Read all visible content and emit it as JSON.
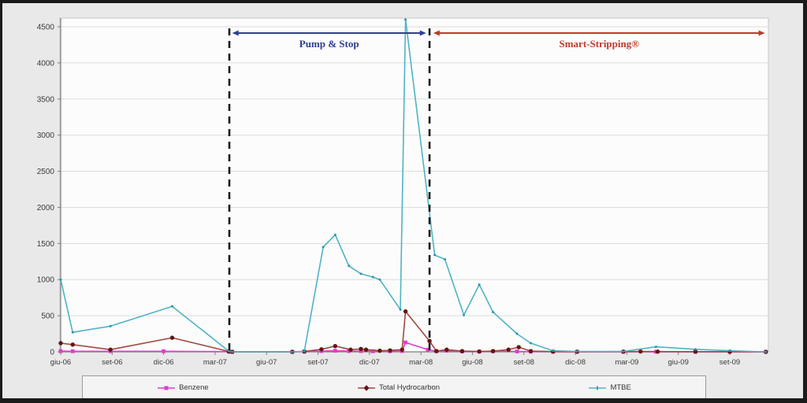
{
  "window": {
    "background": "#e9e9e9",
    "plot_background": "#fcfcfc",
    "frame_color": "#1b1b1b",
    "gridline_color": "#dcdcdc",
    "axis_color": "#7f7f7f",
    "tick_label_color": "#3a3a3a"
  },
  "chart_data": {
    "type": "line",
    "title": "",
    "xlabel": "",
    "ylabel": "",
    "x_tick_labels": [
      "giu-06",
      "set-06",
      "dic-06",
      "mar-07",
      "giu-07",
      "set-07",
      "dic-07",
      "mar-08",
      "giu-08",
      "set-08",
      "dic-08",
      "mar-09",
      "giu-09",
      "set-09"
    ],
    "x_months_per_tick": 3,
    "x_range_months": [
      0,
      41.2
    ],
    "y_ticks": [
      0,
      500,
      1000,
      1500,
      2000,
      2500,
      3000,
      3500,
      4000,
      4500
    ],
    "ylim": [
      0,
      4500
    ],
    "grid": "horizontal",
    "legend_position": "bottom",
    "series": [
      {
        "name": "Benzene",
        "color": "#e23ccd",
        "marker": "square",
        "marker_color": "#e23ccd",
        "points": [
          [
            0,
            10
          ],
          [
            0.7,
            8
          ],
          [
            2.9,
            8
          ],
          [
            6,
            8
          ],
          [
            9.8,
            3
          ],
          [
            10,
            0
          ],
          [
            13.5,
            0
          ],
          [
            14.2,
            3
          ],
          [
            15.2,
            10
          ],
          [
            16,
            15
          ],
          [
            16.8,
            10
          ],
          [
            17.5,
            10
          ],
          [
            18.2,
            8
          ],
          [
            19.2,
            8
          ],
          [
            19.9,
            10
          ],
          [
            20.1,
            130
          ],
          [
            21.4,
            30
          ],
          [
            21.9,
            8
          ],
          [
            22.5,
            15
          ],
          [
            23.4,
            5
          ],
          [
            24.4,
            3
          ],
          [
            25.2,
            8
          ],
          [
            26.6,
            5
          ],
          [
            27.4,
            3
          ],
          [
            28.7,
            2
          ],
          [
            30.1,
            1
          ],
          [
            32.8,
            1
          ],
          [
            34.7,
            1
          ],
          [
            37,
            1
          ],
          [
            39,
            1
          ],
          [
            41.1,
            0
          ]
        ]
      },
      {
        "name": "Total Hydrocarbon",
        "color": "#9c4a41",
        "marker": "circle",
        "marker_color": "#641510",
        "points": [
          [
            0,
            120
          ],
          [
            0.7,
            100
          ],
          [
            2.9,
            30
          ],
          [
            6.5,
            195
          ],
          [
            9.8,
            5
          ],
          [
            10,
            0
          ],
          [
            13.5,
            0
          ],
          [
            14.2,
            5
          ],
          [
            15.2,
            35
          ],
          [
            16,
            80
          ],
          [
            16.9,
            30
          ],
          [
            17.5,
            40
          ],
          [
            17.8,
            30
          ],
          [
            18.6,
            15
          ],
          [
            19.2,
            20
          ],
          [
            19.9,
            30
          ],
          [
            20.1,
            560
          ],
          [
            21.5,
            150
          ],
          [
            21.9,
            10
          ],
          [
            22.5,
            30
          ],
          [
            23.4,
            10
          ],
          [
            24.4,
            5
          ],
          [
            25.2,
            10
          ],
          [
            26.1,
            30
          ],
          [
            26.7,
            65
          ],
          [
            27.4,
            10
          ],
          [
            28.7,
            3
          ],
          [
            30.1,
            2
          ],
          [
            32.8,
            3
          ],
          [
            33.8,
            5
          ],
          [
            34.8,
            3
          ],
          [
            37,
            2
          ],
          [
            39,
            2
          ],
          [
            41.1,
            0
          ]
        ]
      },
      {
        "name": "MTBE",
        "color": "#4fb3c5",
        "marker": "dot",
        "marker_color": "#2f93a8",
        "points": [
          [
            0,
            1000
          ],
          [
            0.7,
            270
          ],
          [
            2.9,
            355
          ],
          [
            6.5,
            630
          ],
          [
            9.8,
            10
          ],
          [
            10,
            0
          ],
          [
            13.5,
            0
          ],
          [
            14.2,
            5
          ],
          [
            15.3,
            1450
          ],
          [
            16,
            1620
          ],
          [
            16.8,
            1190
          ],
          [
            17.5,
            1080
          ],
          [
            18.2,
            1035
          ],
          [
            18.6,
            1000
          ],
          [
            19.8,
            585
          ],
          [
            20.1,
            4600
          ],
          [
            21.8,
            1340
          ],
          [
            22.4,
            1280
          ],
          [
            23.5,
            510
          ],
          [
            24.4,
            930
          ],
          [
            25.2,
            550
          ],
          [
            26.6,
            250
          ],
          [
            27.4,
            120
          ],
          [
            28.7,
            15
          ],
          [
            30.1,
            5
          ],
          [
            32.8,
            5
          ],
          [
            34.7,
            70
          ],
          [
            37,
            35
          ],
          [
            39,
            15
          ],
          [
            41.1,
            0
          ]
        ]
      }
    ]
  },
  "annotations": {
    "dashed_lines_months": [
      9.83,
      21.5
    ],
    "dashed_line_color": "#1a1a1a",
    "pump_stop": {
      "label": "Pump & Stop",
      "color": "#2e3e92",
      "span_months": [
        10.0,
        21.3
      ]
    },
    "smart_stripping": {
      "label": "Smart-Stripping®",
      "color": "#c0392b",
      "span_months": [
        21.72,
        41.05
      ]
    }
  },
  "legend": {
    "items": [
      {
        "label": "Benzene"
      },
      {
        "label": "Total Hydrocarbon"
      },
      {
        "label": "MTBE"
      }
    ]
  }
}
